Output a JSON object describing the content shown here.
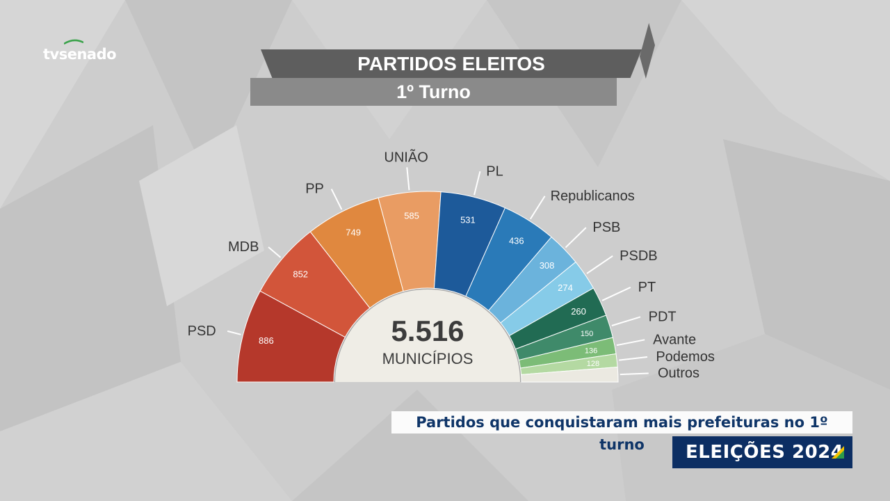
{
  "brand": {
    "logo_text": "tvsenado"
  },
  "header": {
    "title": "PARTIDOS ELEITOS",
    "subtitle": "1º Turno"
  },
  "footer": {
    "caption": "Partidos que conquistaram mais prefeituras no 1º turno",
    "banner": "ELEIÇÕES 2024"
  },
  "chart_data": {
    "type": "pie",
    "shape": "semicircle",
    "total_value": "5.516",
    "total_label": "MUNICÍPIOS",
    "categories": [
      "PSD",
      "MDB",
      "PP",
      "UNIÃO",
      "PL",
      "Republicanos",
      "PSB",
      "PSDB",
      "PT",
      "PDT",
      "Avante",
      "Podemos",
      "Outros"
    ],
    "values": [
      886,
      852,
      749,
      585,
      531,
      436,
      308,
      274,
      260,
      150,
      136,
      128,
      null
    ],
    "value_labels": [
      "886",
      "852",
      "749",
      "585",
      "531",
      "436",
      "308",
      "274",
      "260",
      "150",
      "136",
      "128",
      ""
    ],
    "colors": [
      "#b5382b",
      "#d2553a",
      "#e0883f",
      "#e99c63",
      "#1d5a9a",
      "#2a7ab8",
      "#6bb3dc",
      "#86cbe8",
      "#216b53",
      "#3f8a6a",
      "#7cbc77",
      "#b4d9a2",
      "#ebe9e1"
    ]
  }
}
